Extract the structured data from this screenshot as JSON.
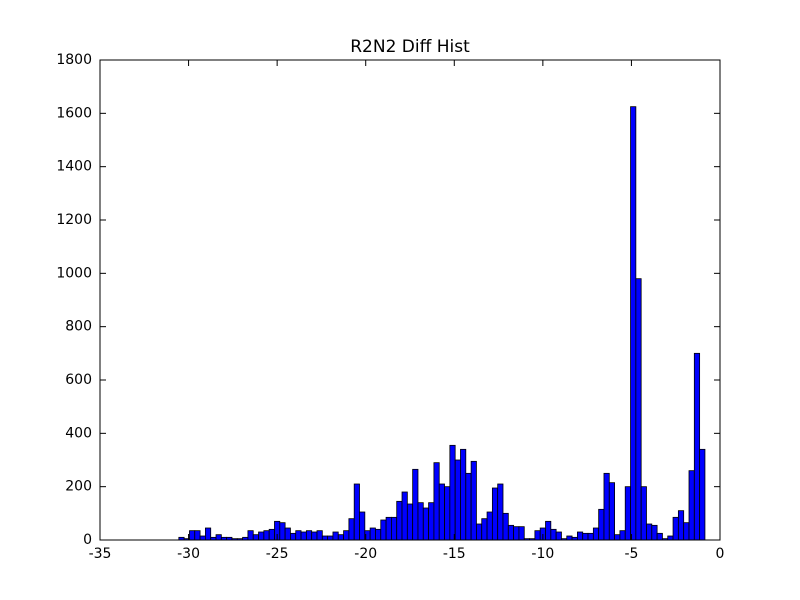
{
  "chart_data": {
    "type": "histogram",
    "title": "R2N2 Diff Hist",
    "bins": [
      -30.55,
      -30.25,
      -29.95,
      -29.65,
      -29.35,
      -29.05,
      -28.75,
      -28.45,
      -28.15,
      -27.85,
      -27.55,
      -27.25,
      -26.95,
      -26.65,
      -26.35,
      -26.05,
      -25.75,
      -25.45,
      -25.15,
      -24.85,
      -24.55,
      -24.25,
      -23.95,
      -23.65,
      -23.35,
      -23.05,
      -22.75,
      -22.45,
      -22.15,
      -21.85,
      -21.55,
      -21.25,
      -20.95,
      -20.65,
      -20.35,
      -20.05,
      -19.75,
      -19.45,
      -19.15,
      -18.85,
      -18.55,
      -18.25,
      -17.95,
      -17.65,
      -17.35,
      -17.05,
      -16.75,
      -16.45,
      -16.15,
      -15.85,
      -15.55,
      -15.25,
      -14.95,
      -14.65,
      -14.35,
      -14.05,
      -13.75,
      -13.45,
      -13.15,
      -12.85,
      -12.55,
      -12.25,
      -11.95,
      -11.65,
      -11.35,
      -11.05,
      -10.75,
      -10.45,
      -10.15,
      -9.85,
      -9.55,
      -9.25,
      -8.95,
      -8.65,
      -8.35,
      -8.05,
      -7.75,
      -7.45,
      -7.15,
      -6.85,
      -6.55,
      -6.25,
      -5.95,
      -5.65,
      -5.35,
      -5.05,
      -4.75,
      -4.45,
      -4.15,
      -3.85,
      -3.55,
      -3.25,
      -2.95,
      -2.65,
      -2.35,
      -2.05,
      -1.75,
      -1.45,
      -1.15,
      -0.85
    ],
    "values": [
      10,
      5,
      35,
      35,
      15,
      45,
      10,
      20,
      10,
      10,
      5,
      5,
      10,
      35,
      20,
      30,
      35,
      40,
      70,
      65,
      45,
      25,
      35,
      30,
      35,
      30,
      35,
      15,
      15,
      30,
      20,
      35,
      80,
      210,
      105,
      35,
      45,
      40,
      75,
      85,
      85,
      145,
      180,
      135,
      265,
      140,
      120,
      140,
      290,
      210,
      200,
      355,
      300,
      340,
      250,
      295,
      60,
      80,
      105,
      195,
      210,
      100,
      55,
      50,
      50,
      5,
      5,
      35,
      45,
      70,
      40,
      30,
      5,
      15,
      10,
      30,
      25,
      25,
      45,
      115,
      250,
      215,
      20,
      35,
      200,
      1625,
      980,
      200,
      60,
      55,
      25,
      5,
      15,
      85,
      110,
      65,
      260,
      700,
      340
    ],
    "color": "#0000ff",
    "xlim": [
      -35,
      0
    ],
    "xticks": [
      -35,
      -30,
      -25,
      -20,
      -15,
      -10,
      -5,
      0
    ],
    "ylim": [
      0,
      1800
    ],
    "yticks": [
      0,
      200,
      400,
      600,
      800,
      1000,
      1200,
      1400,
      1600,
      1800
    ]
  }
}
